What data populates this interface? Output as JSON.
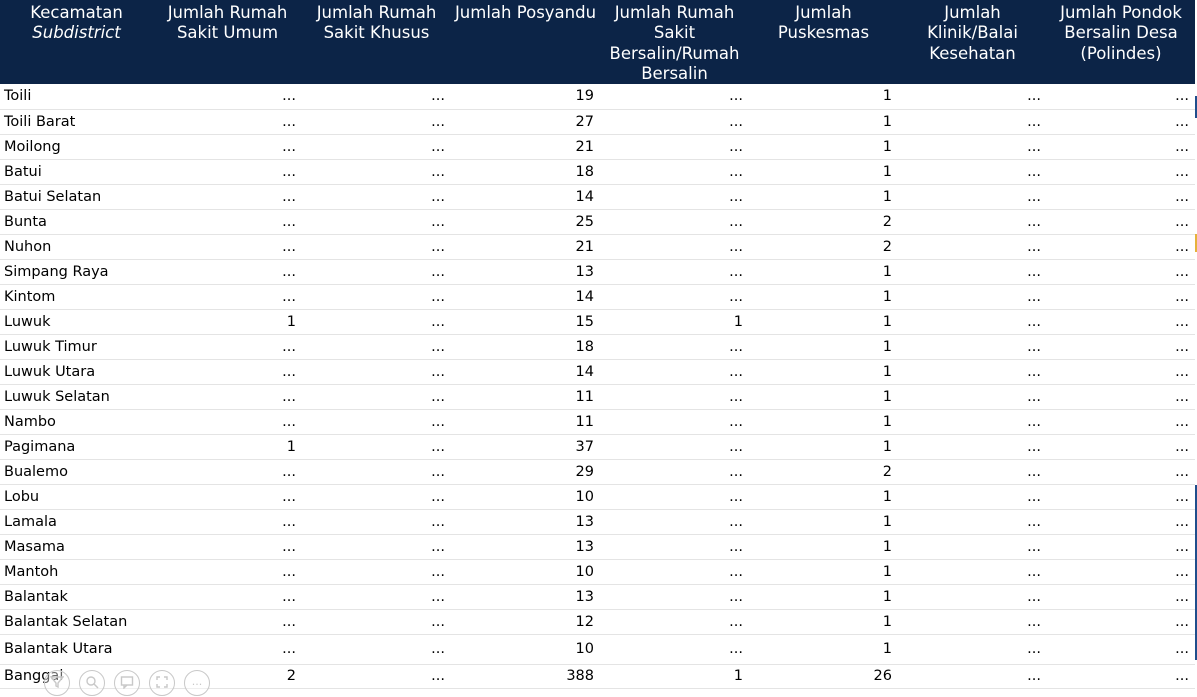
{
  "header": {
    "subdistrict_id": "Kecamatan",
    "subdistrict_en": "Subdistrict",
    "hospital_general": "Jumlah Rumah Sakit Umum",
    "hospital_special": "Jumlah Rumah Sakit Khusus",
    "posyandu": "Jumlah Posyandu",
    "maternity": "Jumlah Rumah Sakit Bersalin/Rumah Bersalin",
    "puskesmas": "Jumlah Puskesmas",
    "clinic": "Jumlah Klinik/Balai Kesehatan",
    "polindes": "Jumlah Pondok Bersalin Desa (Polindes)"
  },
  "rows": [
    {
      "name": "Toili",
      "rsu": "...",
      "rsk": "...",
      "posyandu": "19",
      "rsb": "...",
      "puskesmas": "1",
      "klinik": "...",
      "polindes": "..."
    },
    {
      "name": "Toili Barat",
      "rsu": "...",
      "rsk": "...",
      "posyandu": "27",
      "rsb": "...",
      "puskesmas": "1",
      "klinik": "...",
      "polindes": "..."
    },
    {
      "name": "Moilong",
      "rsu": "...",
      "rsk": "...",
      "posyandu": "21",
      "rsb": "...",
      "puskesmas": "1",
      "klinik": "...",
      "polindes": "..."
    },
    {
      "name": "Batui",
      "rsu": "...",
      "rsk": "...",
      "posyandu": "18",
      "rsb": "...",
      "puskesmas": "1",
      "klinik": "...",
      "polindes": "..."
    },
    {
      "name": "Batui Selatan",
      "rsu": "...",
      "rsk": "...",
      "posyandu": "14",
      "rsb": "...",
      "puskesmas": "1",
      "klinik": "...",
      "polindes": "..."
    },
    {
      "name": "Bunta",
      "rsu": "...",
      "rsk": "...",
      "posyandu": "25",
      "rsb": "...",
      "puskesmas": "2",
      "klinik": "...",
      "polindes": "..."
    },
    {
      "name": "Nuhon",
      "rsu": "...",
      "rsk": "...",
      "posyandu": "21",
      "rsb": "...",
      "puskesmas": "2",
      "klinik": "...",
      "polindes": "..."
    },
    {
      "name": "Simpang Raya",
      "rsu": "...",
      "rsk": "...",
      "posyandu": "13",
      "rsb": "...",
      "puskesmas": "1",
      "klinik": "...",
      "polindes": "..."
    },
    {
      "name": "Kintom",
      "rsu": "...",
      "rsk": "...",
      "posyandu": "14",
      "rsb": "...",
      "puskesmas": "1",
      "klinik": "...",
      "polindes": "..."
    },
    {
      "name": "Luwuk",
      "rsu": "1",
      "rsk": "...",
      "posyandu": "15",
      "rsb": "1",
      "puskesmas": "1",
      "klinik": "...",
      "polindes": "..."
    },
    {
      "name": "Luwuk Timur",
      "rsu": "...",
      "rsk": "...",
      "posyandu": "18",
      "rsb": "...",
      "puskesmas": "1",
      "klinik": "...",
      "polindes": "..."
    },
    {
      "name": "Luwuk Utara",
      "rsu": "...",
      "rsk": "...",
      "posyandu": "14",
      "rsb": "...",
      "puskesmas": "1",
      "klinik": "...",
      "polindes": "..."
    },
    {
      "name": "Luwuk Selatan",
      "rsu": "...",
      "rsk": "...",
      "posyandu": "11",
      "rsb": "...",
      "puskesmas": "1",
      "klinik": "...",
      "polindes": "..."
    },
    {
      "name": "Nambo",
      "rsu": "...",
      "rsk": "...",
      "posyandu": "11",
      "rsb": "...",
      "puskesmas": "1",
      "klinik": "...",
      "polindes": "..."
    },
    {
      "name": "Pagimana",
      "rsu": "1",
      "rsk": "...",
      "posyandu": "37",
      "rsb": "...",
      "puskesmas": "1",
      "klinik": "...",
      "polindes": "..."
    },
    {
      "name": "Bualemo",
      "rsu": "...",
      "rsk": "...",
      "posyandu": "29",
      "rsb": "...",
      "puskesmas": "2",
      "klinik": "...",
      "polindes": "..."
    },
    {
      "name": "Lobu",
      "rsu": "...",
      "rsk": "...",
      "posyandu": "10",
      "rsb": "...",
      "puskesmas": "1",
      "klinik": "...",
      "polindes": "..."
    },
    {
      "name": "Lamala",
      "rsu": "...",
      "rsk": "...",
      "posyandu": "13",
      "rsb": "...",
      "puskesmas": "1",
      "klinik": "...",
      "polindes": "..."
    },
    {
      "name": "Masama",
      "rsu": "...",
      "rsk": "...",
      "posyandu": "13",
      "rsb": "...",
      "puskesmas": "1",
      "klinik": "...",
      "polindes": "..."
    },
    {
      "name": "Mantoh",
      "rsu": "...",
      "rsk": "...",
      "posyandu": "10",
      "rsb": "...",
      "puskesmas": "1",
      "klinik": "...",
      "polindes": "..."
    },
    {
      "name": "Balantak",
      "rsu": "...",
      "rsk": "...",
      "posyandu": "13",
      "rsb": "...",
      "puskesmas": "1",
      "klinik": "...",
      "polindes": "..."
    },
    {
      "name": "Balantak Selatan",
      "rsu": "...",
      "rsk": "...",
      "posyandu": "12",
      "rsb": "...",
      "puskesmas": "1",
      "klinik": "...",
      "polindes": "..."
    },
    {
      "name": "Balantak Utara",
      "rsu": "...",
      "rsk": "...",
      "posyandu": "10",
      "rsb": "...",
      "puskesmas": "1",
      "klinik": "...",
      "polindes": "..."
    }
  ],
  "total": {
    "name": "Banggai",
    "rsu": "2",
    "rsk": "...",
    "posyandu": "388",
    "rsb": "1",
    "puskesmas": "26",
    "klinik": "...",
    "polindes": "..."
  },
  "toolbar": {
    "icons": [
      "filter-icon",
      "search-icon",
      "comment-icon",
      "expand-icon",
      "more-icon"
    ],
    "more_label": "...",
    "border_color": "#c8c8c8"
  },
  "colors": {
    "header_bg": "#0c2447",
    "header_text": "#ffffff",
    "row_divider": "#e4e4e4",
    "accent_edge": "#1f4e8c"
  }
}
